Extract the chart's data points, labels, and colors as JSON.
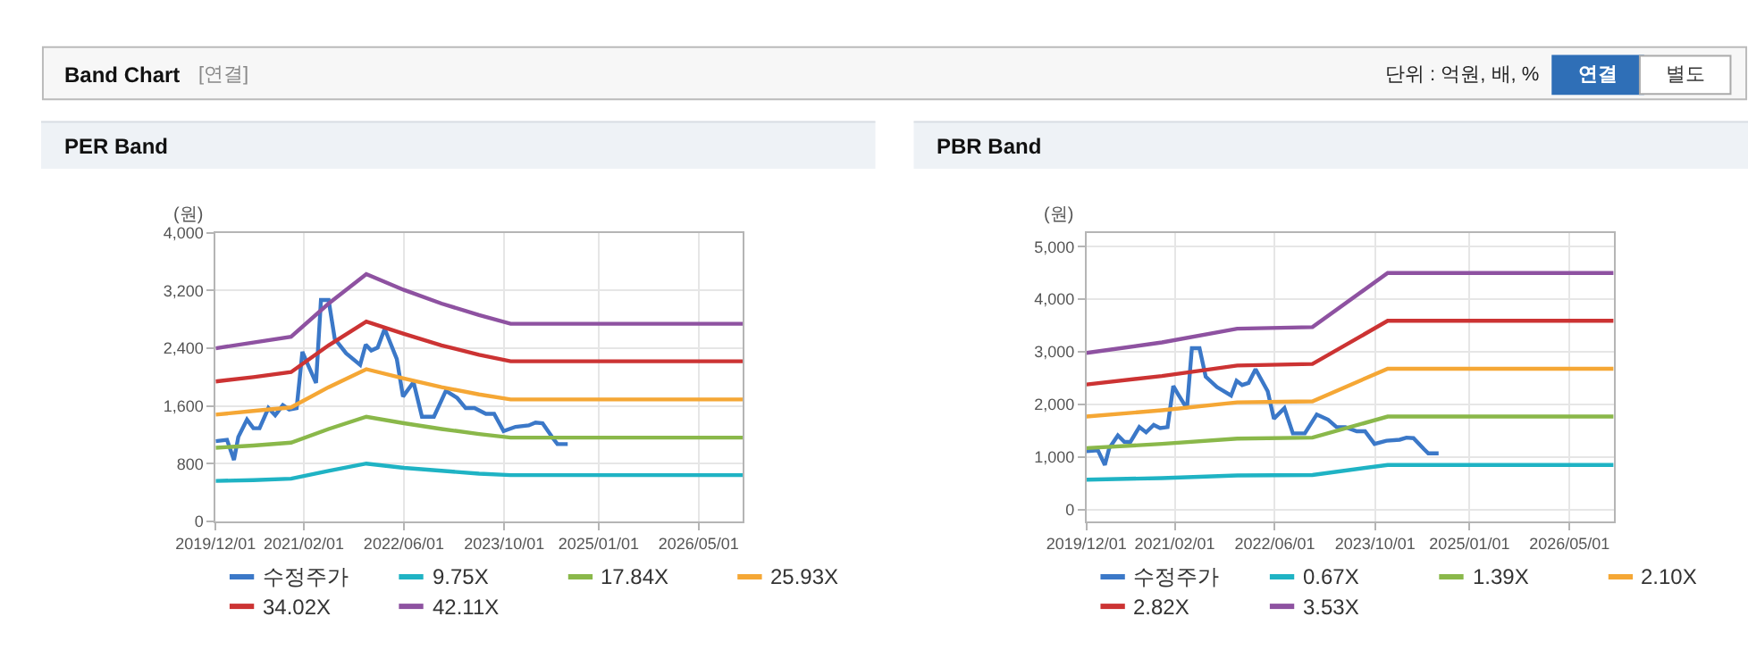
{
  "chart_data": [
    {
      "type": "other",
      "title": "Band Chart",
      "annotations": [
        "[연결]",
        "단위 : 억원, 배, %",
        "연결",
        "별도"
      ]
    },
    {
      "type": "line",
      "title": "PER Band",
      "ylabel": "(원)",
      "legend": "bottom",
      "grid": true,
      "marker": "none",
      "line_style": "solid",
      "xlim": [
        "2019-12-01",
        "2026-12-01"
      ],
      "xticks": [
        {
          "value": "2019-12-01",
          "label": "2019/12/01"
        },
        {
          "value": "2021-02-01",
          "label": "2021/02/01"
        },
        {
          "value": "2022-06-01",
          "label": "2022/06/01"
        },
        {
          "value": "2023-10-01",
          "label": "2023/10/01"
        },
        {
          "value": "2025-01-01",
          "label": "2025/01/01"
        },
        {
          "value": "2026-05-01",
          "label": "2026/05/01"
        }
      ],
      "ylim": [
        0,
        4000
      ],
      "yticks": [
        0,
        {
          "value": 800,
          "label": "800"
        },
        {
          "value": 1600,
          "label": "1,600"
        },
        {
          "value": 2400,
          "label": "2,400"
        },
        {
          "value": 3200,
          "label": "3,200"
        },
        {
          "value": 4000,
          "label": "4,000"
        }
      ],
      "series": [
        {
          "name": "수정주가",
          "color": "#3b78c8",
          "x": [
            "2019-12-01",
            "2020-01-25",
            "2020-02-28",
            "2020-03-20",
            "2020-05-01",
            "2020-06-01",
            "2020-07-01",
            "2020-08-13",
            "2020-09-15",
            "2020-10-22",
            "2020-11-22",
            "2020-12-28",
            "2021-01-25",
            "2021-02-18",
            "2021-04-01",
            "2021-04-25",
            "2021-06-01",
            "2021-07-01",
            "2021-08-25",
            "2021-11-01",
            "2021-11-28",
            "2021-12-25",
            "2022-01-25",
            "2022-02-28",
            "2022-04-28",
            "2022-05-28",
            "2022-07-18",
            "2022-08-28",
            "2022-10-25",
            "2022-12-22",
            "2023-02-15",
            "2023-03-28",
            "2023-05-10",
            "2023-07-04",
            "2023-08-13",
            "2023-09-28",
            "2023-11-25",
            "2024-01-28",
            "2024-03-01",
            "2024-04-04",
            "2024-05-25",
            "2024-06-15",
            "2024-08-04"
          ],
          "values": [
            1110,
            1130,
            850,
            1170,
            1410,
            1290,
            1290,
            1570,
            1470,
            1610,
            1550,
            1570,
            2350,
            2190,
            1920,
            3070,
            3070,
            2530,
            2330,
            2170,
            2450,
            2370,
            2410,
            2670,
            2250,
            1730,
            1930,
            1450,
            1450,
            1810,
            1710,
            1570,
            1570,
            1490,
            1490,
            1250,
            1310,
            1330,
            1370,
            1360,
            1150,
            1070,
            1070
          ]
        },
        {
          "name": "9.75X",
          "color": "#1fb3c4",
          "x": [
            "2019-12-01",
            "2020-06-01",
            "2020-12-01",
            "2021-06-01",
            "2021-12-01",
            "2022-06-01",
            "2022-12-01",
            "2023-06-01",
            "2023-11-01",
            "2026-12-01"
          ],
          "values": [
            560,
            570,
            590,
            700,
            800,
            740,
            700,
            660,
            640,
            640
          ]
        },
        {
          "name": "17.84X",
          "color": "#8ab84a",
          "x": [
            "2019-12-01",
            "2020-06-01",
            "2020-12-01",
            "2021-06-01",
            "2021-12-01",
            "2022-06-01",
            "2022-12-01",
            "2023-06-01",
            "2023-11-01",
            "2026-12-01"
          ],
          "values": [
            1020,
            1050,
            1090,
            1280,
            1450,
            1360,
            1280,
            1210,
            1160,
            1160
          ]
        },
        {
          "name": "25.93X",
          "color": "#f5a735",
          "x": [
            "2019-12-01",
            "2020-06-01",
            "2020-12-01",
            "2021-06-01",
            "2021-12-01",
            "2022-06-01",
            "2022-12-01",
            "2023-06-01",
            "2023-11-01",
            "2026-12-01"
          ],
          "values": [
            1480,
            1530,
            1580,
            1860,
            2110,
            1980,
            1860,
            1760,
            1690,
            1690
          ]
        },
        {
          "name": "34.02X",
          "color": "#cc3333",
          "x": [
            "2019-12-01",
            "2020-06-01",
            "2020-12-01",
            "2021-06-01",
            "2021-12-01",
            "2022-06-01",
            "2022-12-01",
            "2023-06-01",
            "2023-11-01",
            "2026-12-01"
          ],
          "values": [
            1940,
            2000,
            2070,
            2440,
            2770,
            2600,
            2440,
            2310,
            2220,
            2220
          ]
        },
        {
          "name": "42.11X",
          "color": "#8e52a1",
          "x": [
            "2019-12-01",
            "2020-06-01",
            "2020-12-01",
            "2021-06-01",
            "2021-12-01",
            "2022-06-01",
            "2022-12-01",
            "2023-06-01",
            "2023-11-01",
            "2026-12-01"
          ],
          "values": [
            2400,
            2480,
            2560,
            3020,
            3430,
            3210,
            3020,
            2860,
            2740,
            2740
          ]
        }
      ]
    },
    {
      "type": "line",
      "title": "PBR Band",
      "ylabel": "(원)",
      "legend": "bottom",
      "grid": true,
      "marker": "none",
      "line_style": "solid",
      "xlim": [
        "2019-12-01",
        "2026-12-01"
      ],
      "xticks": [
        {
          "value": "2019-12-01",
          "label": "2019/12/01"
        },
        {
          "value": "2021-02-01",
          "label": "2021/02/01"
        },
        {
          "value": "2022-06-01",
          "label": "2022/06/01"
        },
        {
          "value": "2023-10-01",
          "label": "2023/10/01"
        },
        {
          "value": "2025-01-01",
          "label": "2025/01/01"
        },
        {
          "value": "2026-05-01",
          "label": "2026/05/01"
        }
      ],
      "ylim": [
        -220,
        5260
      ],
      "yticks": [
        0,
        {
          "value": 1000,
          "label": "1,000"
        },
        {
          "value": 2000,
          "label": "2,000"
        },
        {
          "value": 3000,
          "label": "3,000"
        },
        {
          "value": 4000,
          "label": "4,000"
        },
        {
          "value": 5000,
          "label": "5,000"
        }
      ],
      "series": [
        {
          "name": "수정주가",
          "color": "#3b78c8",
          "x": [
            "2019-12-01",
            "2020-01-25",
            "2020-02-28",
            "2020-03-20",
            "2020-05-01",
            "2020-06-01",
            "2020-07-01",
            "2020-08-13",
            "2020-09-15",
            "2020-10-22",
            "2020-11-22",
            "2020-12-28",
            "2021-01-25",
            "2021-02-18",
            "2021-04-01",
            "2021-04-25",
            "2021-06-01",
            "2021-07-01",
            "2021-08-25",
            "2021-11-01",
            "2021-11-28",
            "2021-12-25",
            "2022-01-25",
            "2022-02-28",
            "2022-04-28",
            "2022-05-28",
            "2022-07-18",
            "2022-08-28",
            "2022-10-25",
            "2022-12-22",
            "2023-02-15",
            "2023-03-28",
            "2023-05-10",
            "2023-07-04",
            "2023-08-13",
            "2023-09-28",
            "2023-11-25",
            "2024-01-28",
            "2024-03-01",
            "2024-04-04",
            "2024-05-25",
            "2024-06-15",
            "2024-08-04"
          ],
          "values": [
            1110,
            1130,
            850,
            1170,
            1410,
            1290,
            1290,
            1570,
            1470,
            1610,
            1550,
            1570,
            2350,
            2190,
            1920,
            3070,
            3070,
            2530,
            2330,
            2170,
            2450,
            2370,
            2410,
            2670,
            2250,
            1730,
            1930,
            1450,
            1450,
            1810,
            1710,
            1570,
            1570,
            1490,
            1490,
            1250,
            1310,
            1330,
            1370,
            1360,
            1150,
            1070,
            1070
          ]
        },
        {
          "name": "0.67X",
          "color": "#1fb3c4",
          "x": [
            "2019-12-01",
            "2020-12-01",
            "2021-12-01",
            "2022-12-01",
            "2023-12-01",
            "2026-12-01"
          ],
          "values": [
            570,
            600,
            650,
            660,
            850,
            850
          ]
        },
        {
          "name": "1.39X",
          "color": "#8ab84a",
          "x": [
            "2019-12-01",
            "2020-12-01",
            "2021-12-01",
            "2022-12-01",
            "2023-12-01",
            "2026-12-01"
          ],
          "values": [
            1170,
            1250,
            1350,
            1370,
            1770,
            1770
          ]
        },
        {
          "name": "2.10X",
          "color": "#f5a735",
          "x": [
            "2019-12-01",
            "2020-12-01",
            "2021-12-01",
            "2022-12-01",
            "2023-12-01",
            "2026-12-01"
          ],
          "values": [
            1770,
            1890,
            2040,
            2060,
            2680,
            2680
          ]
        },
        {
          "name": "2.82X",
          "color": "#cc3333",
          "x": [
            "2019-12-01",
            "2020-12-01",
            "2021-12-01",
            "2022-12-01",
            "2023-12-01",
            "2026-12-01"
          ],
          "values": [
            2380,
            2540,
            2740,
            2770,
            3590,
            3590
          ]
        },
        {
          "name": "3.53X",
          "color": "#8e52a1",
          "x": [
            "2019-12-01",
            "2020-12-01",
            "2021-12-01",
            "2022-12-01",
            "2023-12-01",
            "2026-12-01"
          ],
          "values": [
            2980,
            3180,
            3440,
            3470,
            4500,
            4500
          ]
        }
      ]
    }
  ]
}
